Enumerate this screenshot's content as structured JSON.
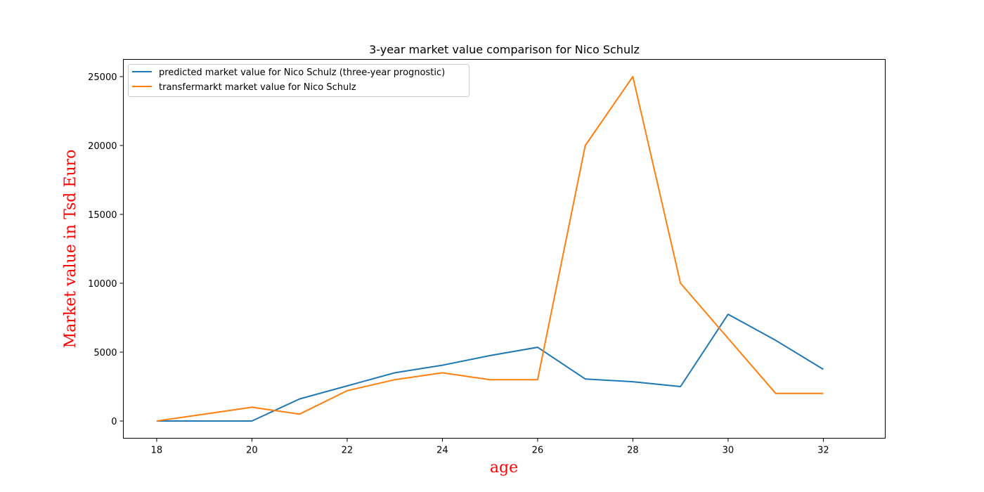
{
  "chart_data": {
    "type": "line",
    "title": "3-year market value comparison for Nico Schulz",
    "xlabel": "age",
    "ylabel": "Market value in Tsd Euro",
    "axis_label_color": "#ff0000",
    "xlim": [
      17.3,
      33.3
    ],
    "ylim": [
      -1250,
      26250
    ],
    "xticks": [
      18,
      20,
      22,
      24,
      26,
      28,
      30,
      32
    ],
    "yticks": [
      0,
      5000,
      10000,
      15000,
      20000,
      25000
    ],
    "grid": false,
    "legend_position": "top-left",
    "series": [
      {
        "name": "predicted market value for Nico Schulz (three-year prognostic)",
        "color": "#1f77b4",
        "x": [
          18,
          19,
          20,
          21,
          22,
          23,
          24,
          25,
          26,
          27,
          28,
          29,
          30,
          31,
          32
        ],
        "y": [
          0,
          0,
          0,
          1600,
          2550,
          3500,
          4050,
          4750,
          5350,
          3050,
          2850,
          2500,
          7750,
          5850,
          3750
        ]
      },
      {
        "name": "transfermarkt market value for Nico Schulz",
        "color": "#ff7f0e",
        "x": [
          18,
          19,
          20,
          21,
          22,
          23,
          24,
          25,
          26,
          27,
          28,
          29,
          30,
          31,
          32
        ],
        "y": [
          0,
          500,
          1000,
          500,
          2200,
          3000,
          3500,
          3000,
          3000,
          20000,
          25000,
          10000,
          6000,
          2000,
          2000
        ]
      }
    ]
  }
}
